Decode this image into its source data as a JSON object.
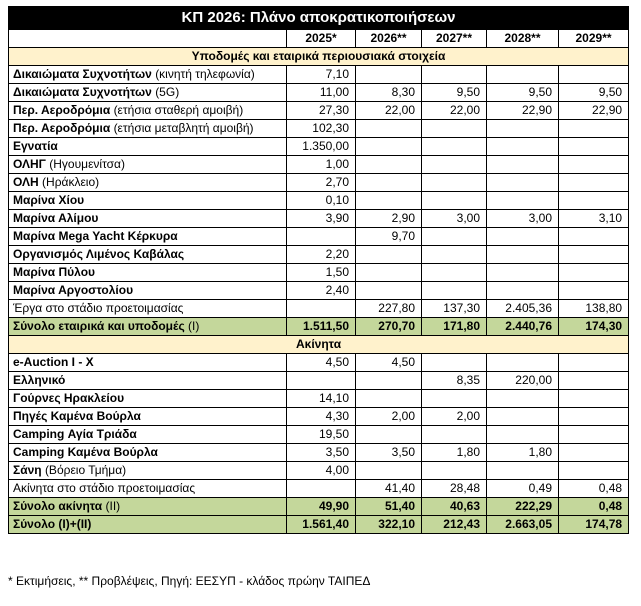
{
  "title": "ΚΠ 2026: Πλάνο αποκρατικοποιήσεων",
  "years": [
    "2025*",
    "2026**",
    "2027**",
    "2028**",
    "2029**"
  ],
  "section1": {
    "header": "Υποδομές και εταιρικά περιουσιακά στοιχεία",
    "rows": [
      {
        "name": "Δικαιώματα Συχνοτήτων",
        "note": "(κινητή τηλεφωνία)",
        "values": [
          "7,10",
          "",
          "",
          "",
          ""
        ]
      },
      {
        "name": "Δικαιώματα Συχνοτήτων",
        "note": "(5G)",
        "values": [
          "11,00",
          "8,30",
          "9,50",
          "9,50",
          "9,50"
        ]
      },
      {
        "name": "Περ. Αεροδρόμια",
        "note": "(ετήσια σταθερή αμοιβή)",
        "values": [
          "27,30",
          "22,00",
          "22,00",
          "22,90",
          "22,90"
        ]
      },
      {
        "name": "Περ. Αεροδρόμια",
        "note": "(ετήσια μεταβλητή αμοιβή)",
        "values": [
          "102,30",
          "",
          "",
          "",
          ""
        ]
      },
      {
        "name": "Εγνατία",
        "note": "",
        "values": [
          "1.350,00",
          "",
          "",
          "",
          ""
        ]
      },
      {
        "name": "ΟΛΗΓ",
        "note": "(Ηγουμενίτσα)",
        "values": [
          "1,00",
          "",
          "",
          "",
          ""
        ]
      },
      {
        "name": "ΟΛΗ",
        "note": "(Ηράκλειο)",
        "values": [
          "2,70",
          "",
          "",
          "",
          ""
        ]
      },
      {
        "name": "Μαρίνα Χίου",
        "note": "",
        "values": [
          "0,10",
          "",
          "",
          "",
          ""
        ]
      },
      {
        "name": "Μαρίνα Αλίμου",
        "note": "",
        "values": [
          "3,90",
          "2,90",
          "3,00",
          "3,00",
          "3,10"
        ]
      },
      {
        "name": "Μαρίνα Mega Yacht Κέρκυρα",
        "note": "",
        "values": [
          "",
          "9,70",
          "",
          "",
          ""
        ]
      },
      {
        "name": "Οργανισμός Λιμένος Καβάλας",
        "note": "",
        "values": [
          "2,20",
          "",
          "",
          "",
          ""
        ]
      },
      {
        "name": "Μαρίνα Πύλου",
        "note": "",
        "values": [
          "1,50",
          "",
          "",
          "",
          ""
        ]
      },
      {
        "name": "Μαρίνα Αργοστολίου",
        "note": "",
        "values": [
          "2,40",
          "",
          "",
          "",
          ""
        ]
      },
      {
        "name": "Έργα στο στάδιο προετοιμασίας",
        "note": "",
        "plain": true,
        "values": [
          "",
          "227,80",
          "137,30",
          "2.405,36",
          "138,80"
        ]
      }
    ],
    "total": {
      "name": "Σύνολο εταιρικά και υποδομές",
      "suffix": " (Ι)",
      "values": [
        "1.511,50",
        "270,70",
        "171,80",
        "2.440,76",
        "174,30"
      ]
    }
  },
  "section2": {
    "header": "Ακίνητα",
    "rows": [
      {
        "name": "e-Auction I - X",
        "note": "",
        "values": [
          "4,50",
          "4,50",
          "",
          "",
          ""
        ]
      },
      {
        "name": "Ελληνικό",
        "note": "",
        "values": [
          "",
          "",
          "8,35",
          "220,00",
          ""
        ]
      },
      {
        "name": "Γούρνες Ηρακλείου",
        "note": "",
        "values": [
          "14,10",
          "",
          "",
          "",
          ""
        ]
      },
      {
        "name": "Πηγές Καμένα Βούρλα",
        "note": "",
        "values": [
          "4,30",
          "2,00",
          "2,00",
          "",
          ""
        ]
      },
      {
        "name": "Camping Αγία Τριάδα",
        "note": "",
        "values": [
          "19,50",
          "",
          "",
          "",
          ""
        ]
      },
      {
        "name": "Camping Καμένα Βούρλα",
        "note": "",
        "values": [
          "3,50",
          "3,50",
          "1,80",
          "1,80",
          ""
        ]
      },
      {
        "name": "Σάνη",
        "note": "(Βόρειο Τμήμα)",
        "values": [
          "4,00",
          "",
          "",
          "",
          ""
        ]
      },
      {
        "name": "Ακίνητα στο στάδιο προετοιμασίας",
        "note": "",
        "plain": true,
        "values": [
          "",
          "41,40",
          "28,48",
          "0,49",
          "0,48"
        ]
      }
    ],
    "total": {
      "name": "Σύνολο ακίνητα",
      "suffix": " (ΙΙ)",
      "values": [
        "49,90",
        "51,40",
        "40,63",
        "222,29",
        "0,48"
      ]
    }
  },
  "grand_total": {
    "name": "Σύνολο (Ι)+(ΙΙ)",
    "values": [
      "1.561,40",
      "322,10",
      "212,43",
      "2.663,05",
      "174,78"
    ]
  },
  "footnote": "* Εκτιμήσεις, ** Προβλέψεις, Πηγή: ΕΕΣΥΠ - κλάδος πρώην ΤΑΙΠΕΔ"
}
